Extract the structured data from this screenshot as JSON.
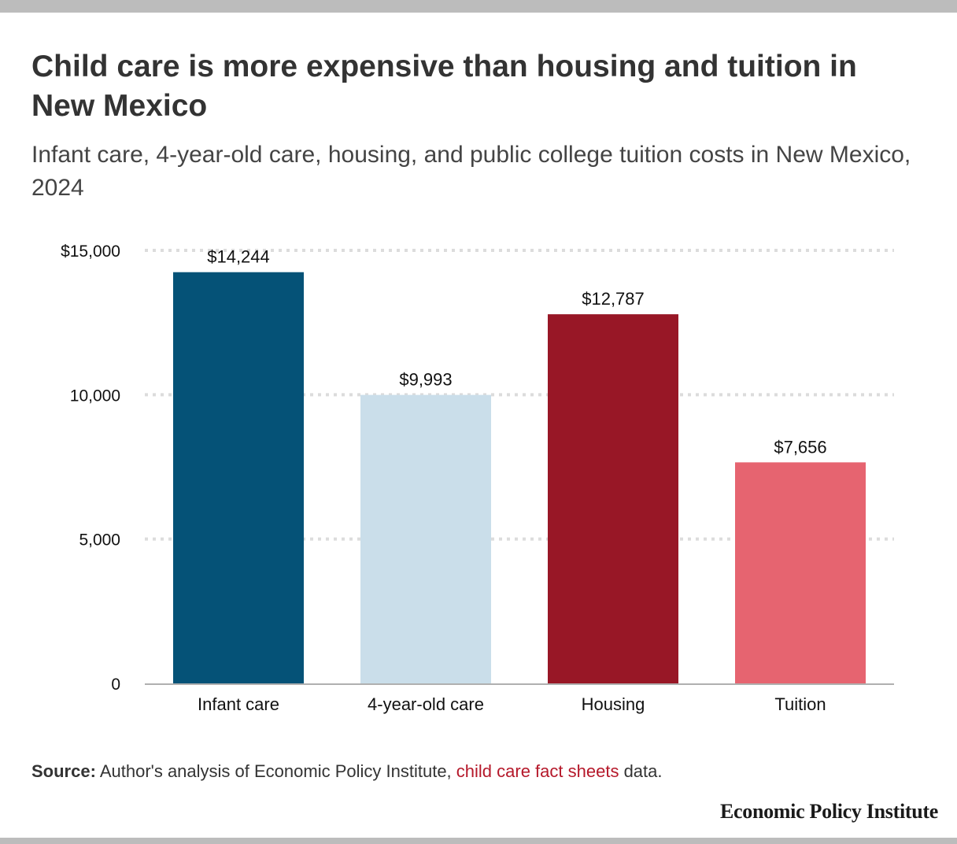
{
  "header": {
    "title": "Child care is more expensive than housing and tuition in New Mexico",
    "subtitle": "Infant care, 4-year-old care, housing, and public college tuition costs in New Mexico, 2024"
  },
  "chart_data": {
    "type": "bar",
    "title": "Child care is more expensive than housing and tuition in New Mexico",
    "subtitle": "Infant care, 4-year-old care, housing, and public college tuition costs in New Mexico, 2024",
    "categories": [
      "Infant care",
      "4-year-old care",
      "Housing",
      "Tuition"
    ],
    "values": [
      14244,
      9993,
      12787,
      7656
    ],
    "value_labels": [
      "$14,244",
      "$9,993",
      "$12,787",
      "$7,656"
    ],
    "colors": [
      "#055277",
      "#cadeea",
      "#981726",
      "#e66470"
    ],
    "ylim": [
      0,
      15000
    ],
    "yticks": [
      0,
      5000,
      10000,
      15000
    ],
    "ytick_labels": [
      "0",
      "5,000",
      "10,000",
      "$15,000"
    ],
    "grid": "dotted horizontal",
    "xlabel": "",
    "ylabel": ""
  },
  "source": {
    "label": "Source:",
    "text_before": " Author's analysis of Economic Policy Institute, ",
    "link_text": "child care fact sheets",
    "text_after": " data."
  },
  "logo": {
    "text": "Economic Policy Institute"
  },
  "colors": {
    "frame": "#bcbcbc",
    "link": "#b5182a"
  }
}
